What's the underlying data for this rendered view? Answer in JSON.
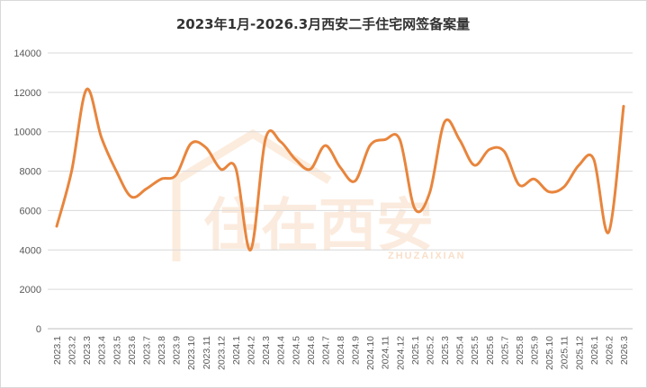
{
  "chart_data": {
    "type": "line",
    "title": "2023年1月-2026.3月西安二手住宅网签备案量",
    "xlabel": "",
    "ylabel": "",
    "ylim": [
      0,
      14000
    ],
    "yticks": [
      0,
      2000,
      4000,
      6000,
      8000,
      10000,
      12000,
      14000
    ],
    "grid": true,
    "legend": "none",
    "categories": [
      "2023.1",
      "2023.2",
      "2023.3",
      "2023.4",
      "2023.5",
      "2023.6",
      "2023.7",
      "2023.8",
      "2023.9",
      "2023.10",
      "2023.11",
      "2023.12",
      "2024.1",
      "2024.2",
      "2024.3",
      "2024.4",
      "2024.5",
      "2024.6",
      "2024.7",
      "2024.8",
      "2024.9",
      "2024.10",
      "2024.11",
      "2024.12",
      "2025.1",
      "2025.2",
      "2025.3",
      "2025.4",
      "2025.5",
      "2025.6",
      "2025.7",
      "2025.8",
      "2025.9",
      "2025.10",
      "2025.11",
      "2025.12",
      "2026.1",
      "2026.2",
      "2026.3"
    ],
    "series": [
      {
        "values": [
          5200,
          8000,
          12150,
          9700,
          8000,
          6700,
          7100,
          7600,
          7800,
          9400,
          9200,
          8100,
          8150,
          4000,
          9650,
          9500,
          8600,
          8100,
          9300,
          8200,
          7500,
          9300,
          9600,
          9600,
          6100,
          6900,
          10500,
          9600,
          8300,
          9100,
          9000,
          7300,
          7600,
          6950,
          7200,
          8300,
          8600,
          4900,
          11300
        ]
      }
    ],
    "colors": {
      "line": "#e8853d",
      "grid": "#d9d9d9",
      "axis": "#bfbfbf",
      "watermark": "#f3b98a"
    }
  },
  "watermark": {
    "text": "住在西安",
    "subtext": "ZHUZAIXIAN"
  }
}
